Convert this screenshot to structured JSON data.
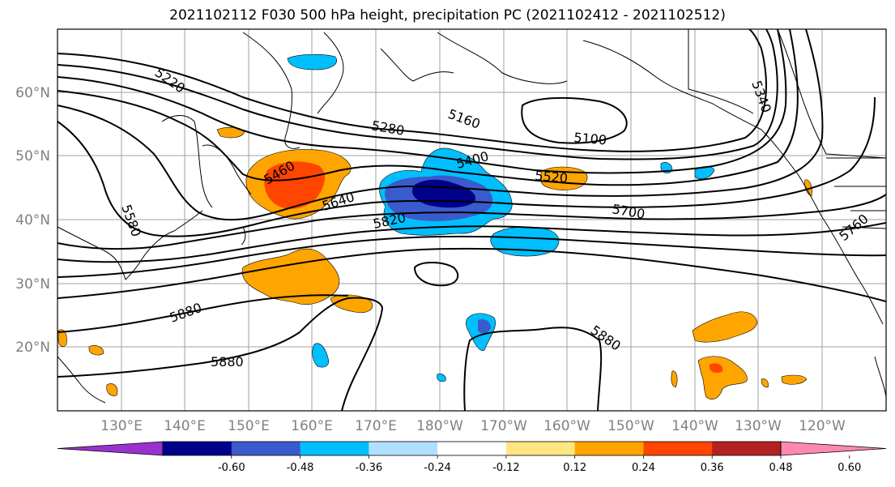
{
  "title": "2021102112 F030 500 hPa height, precipitation PC (2021102412 - 2021102512)",
  "lat_labels": [
    "60°N",
    "50°N",
    "40°N",
    "30°N",
    "20°N"
  ],
  "lon_labels": [
    "130°E",
    "140°E",
    "150°E",
    "160°E",
    "170°E",
    "180°W",
    "170°W",
    "160°W",
    "150°W",
    "140°W",
    "130°W",
    "120°W"
  ],
  "contour_labels": [
    "5220",
    "5160",
    "5100",
    "5340",
    "5280",
    "5400",
    "5520",
    "5460",
    "5580",
    "5640",
    "5700",
    "5820",
    "5760",
    "5880",
    "5880",
    "5880"
  ],
  "colorbar": {
    "colors": [
      "#9932cc",
      "#00008b",
      "#3a5bcc",
      "#00bfff",
      "#b0e0ff",
      "#ffffff",
      "#ffe680",
      "#ffa500",
      "#ff4500",
      "#b22222",
      "#ff88b0"
    ],
    "tick_labels": [
      "-0.60",
      "-0.48",
      "-0.36",
      "-0.24",
      "-0.12",
      "0.12",
      "0.24",
      "0.36",
      "0.48",
      "0.60"
    ]
  }
}
